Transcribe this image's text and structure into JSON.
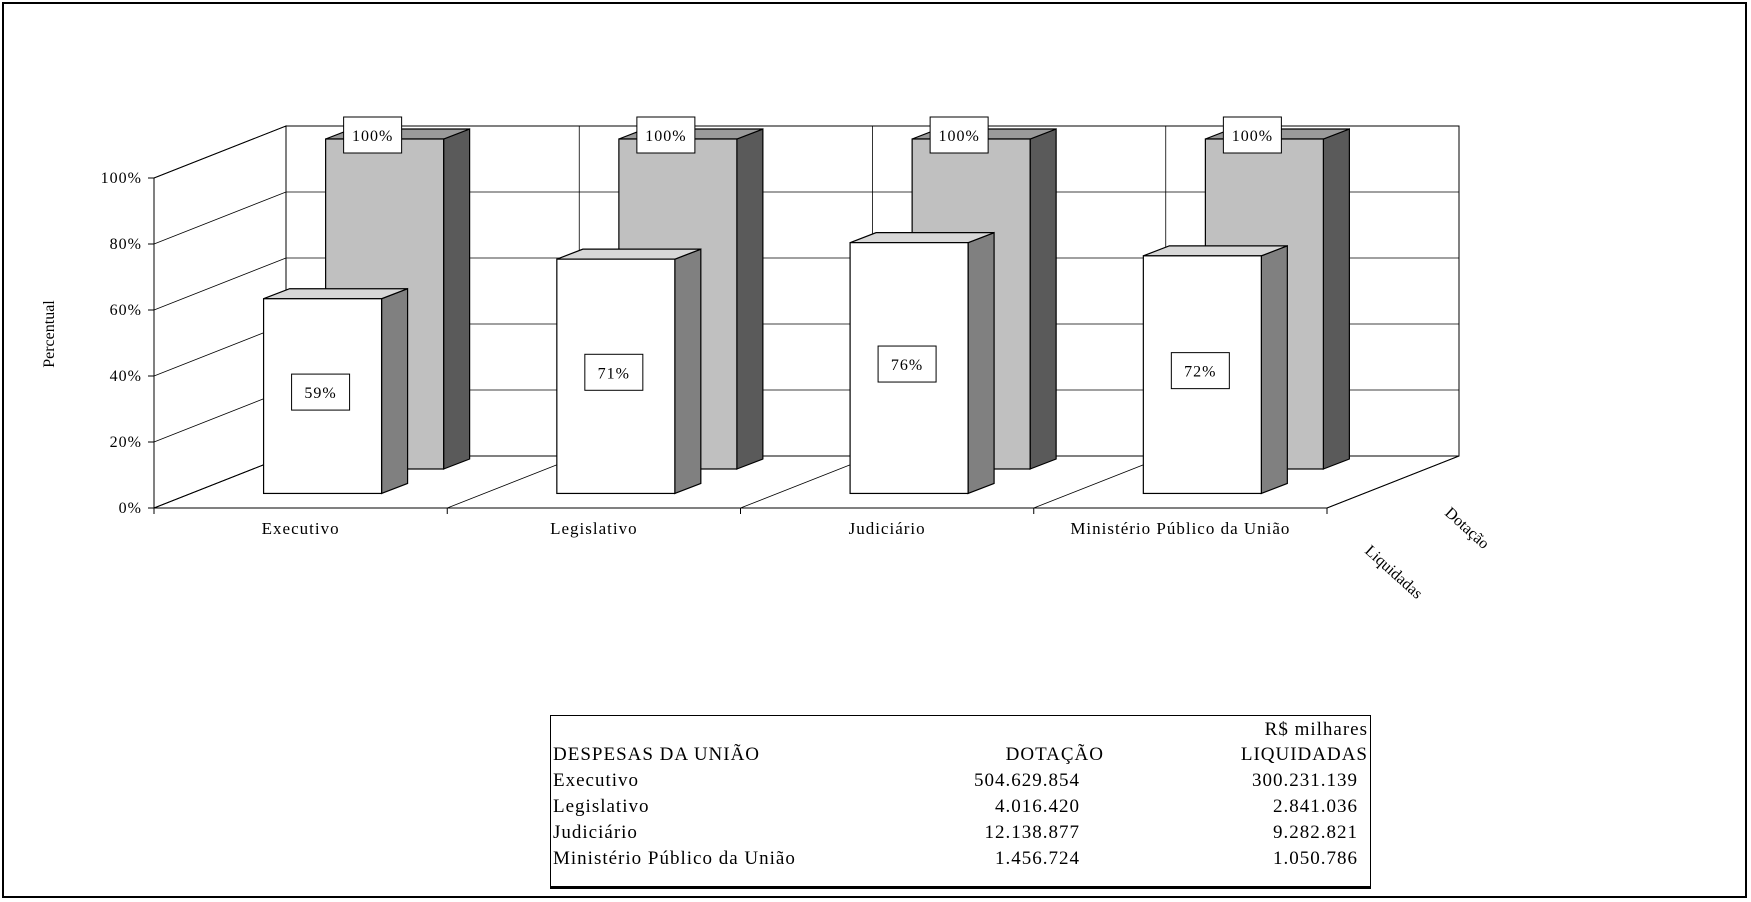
{
  "chart_data": {
    "type": "bar",
    "title": "",
    "xlabel": "",
    "ylabel": "Percentual",
    "ylim": [
      0,
      100
    ],
    "yticks": [
      "0%",
      "20%",
      "40%",
      "60%",
      "80%",
      "100%"
    ],
    "grid": true,
    "categories": [
      "Executivo",
      "Legislativo",
      "Judiciário",
      "Ministério Público da União"
    ],
    "series": [
      {
        "name": "Liquidadas",
        "values": [
          59,
          71,
          76,
          72
        ],
        "labels": [
          "59%",
          "71%",
          "76%",
          "72%"
        ],
        "color": "#ffffff",
        "side_color": "#808080"
      },
      {
        "name": "Dotação",
        "values": [
          100,
          100,
          100,
          100
        ],
        "labels": [
          "100%",
          "100%",
          "100%",
          "100%"
        ],
        "color": "#c0c0c0",
        "side_color": "#5a5a5a"
      }
    ]
  },
  "table": {
    "unit": "R$ milhares",
    "header": [
      "DESPESAS DA UNIÃO",
      "DOTAÇÃO",
      "LIQUIDADAS"
    ],
    "rows": [
      [
        "Executivo",
        "504.629.854",
        "300.231.139"
      ],
      [
        "Legislativo",
        "4.016.420",
        "2.841.036"
      ],
      [
        "Judiciário",
        "12.138.877",
        "9.282.821"
      ],
      [
        "Ministério Público da União",
        "1.456.724",
        "1.050.786"
      ]
    ]
  }
}
